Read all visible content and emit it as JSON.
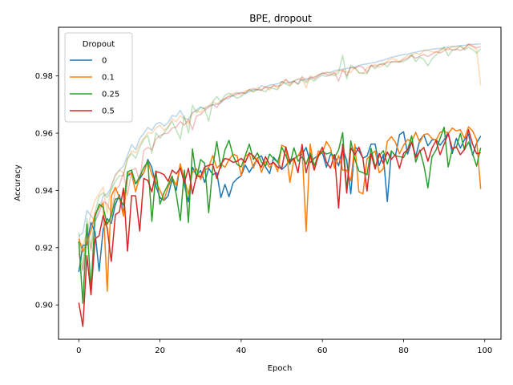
{
  "chart_data": {
    "type": "line",
    "title": "BPE, dropout",
    "xlabel": "Epoch",
    "ylabel": "Accuracy",
    "xlim": [
      -5,
      104
    ],
    "ylim": [
      0.888,
      0.997
    ],
    "xticks": [
      0,
      20,
      40,
      60,
      80,
      100
    ],
    "yticks": [
      0.9,
      0.92,
      0.94,
      0.96,
      0.98
    ],
    "ytick_labels": [
      "0.90",
      "0.92",
      "0.94",
      "0.96",
      "0.98"
    ],
    "legend": {
      "title": "Dropout",
      "position": "top-left"
    },
    "grid": false,
    "faded_alpha": 0.3,
    "series": [
      {
        "name": "0",
        "color": "#1f77b4",
        "values": [
          0.9115,
          0.9208,
          0.921,
          0.9288,
          0.9255,
          0.9118,
          0.9265,
          0.9301,
          0.9285,
          0.935,
          0.9385,
          0.9321,
          0.945,
          0.9462,
          0.9423,
          0.9441,
          0.9462,
          0.9508,
          0.948,
          0.9415,
          0.9375,
          0.9365,
          0.9381,
          0.9439,
          0.94,
          0.9493,
          0.942,
          0.936,
          0.9481,
          0.9452,
          0.947,
          0.9428,
          0.9478,
          0.9455,
          0.9462,
          0.9375,
          0.9421,
          0.9378,
          0.9426,
          0.9441,
          0.9451,
          0.9489,
          0.9463,
          0.9487,
          0.9512,
          0.9521,
          0.9482,
          0.9459,
          0.9516,
          0.9498,
          0.9473,
          0.9486,
          0.9508,
          0.9511,
          0.9521,
          0.9526,
          0.955,
          0.9497,
          0.9512,
          0.9523,
          0.9532,
          0.9481,
          0.9525,
          0.9522,
          0.9486,
          0.9548,
          0.9505,
          0.9388,
          0.9553,
          0.9538,
          0.9513,
          0.952,
          0.9562,
          0.9562,
          0.9487,
          0.9525,
          0.9361,
          0.9538,
          0.9521,
          0.9595,
          0.9605,
          0.9527,
          0.9571,
          0.9518,
          0.9576,
          0.9594,
          0.9556,
          0.9576,
          0.9578,
          0.9558,
          0.9577,
          0.9603,
          0.9529,
          0.9582,
          0.9548,
          0.9577,
          0.9598,
          0.9523,
          0.9565,
          0.959
        ]
      },
      {
        "name": "0.1",
        "color": "#ff7f0e",
        "values": [
          0.9231,
          0.9186,
          0.9216,
          0.9259,
          0.9318,
          0.9341,
          0.9355,
          0.9048,
          0.938,
          0.9411,
          0.9375,
          0.931,
          0.9461,
          0.9458,
          0.9395,
          0.945,
          0.9462,
          0.9502,
          0.9455,
          0.9428,
          0.9401,
          0.9367,
          0.9411,
          0.9445,
          0.9418,
          0.9492,
          0.9438,
          0.9387,
          0.9463,
          0.9476,
          0.9438,
          0.9469,
          0.9481,
          0.9522,
          0.9478,
          0.9492,
          0.9481,
          0.9508,
          0.9526,
          0.9521,
          0.9451,
          0.9519,
          0.9528,
          0.9478,
          0.9515,
          0.9463,
          0.9502,
          0.948,
          0.9498,
          0.9466,
          0.9558,
          0.9551,
          0.9428,
          0.9508,
          0.9521,
          0.9546,
          0.9257,
          0.9562,
          0.9476,
          0.9538,
          0.9531,
          0.9571,
          0.9548,
          0.9477,
          0.9522,
          0.9471,
          0.9471,
          0.9433,
          0.9562,
          0.9395,
          0.9388,
          0.951,
          0.9525,
          0.9538,
          0.9462,
          0.9476,
          0.9571,
          0.9588,
          0.9568,
          0.9528,
          0.9558,
          0.9578,
          0.957,
          0.9603,
          0.9568,
          0.9595,
          0.9598,
          0.9581,
          0.9575,
          0.9603,
          0.9608,
          0.9598,
          0.9618,
          0.9608,
          0.9612,
          0.9582,
          0.9622,
          0.9608,
          0.9578,
          0.9405
        ]
      },
      {
        "name": "0.25",
        "color": "#2ca02c",
        "values": [
          0.9222,
          0.9006,
          0.9282,
          0.9055,
          0.9308,
          0.9352,
          0.9341,
          0.9282,
          0.9311,
          0.937,
          0.9372,
          0.9348,
          0.9465,
          0.9471,
          0.9423,
          0.9448,
          0.948,
          0.9501,
          0.9292,
          0.9468,
          0.9352,
          0.9392,
          0.9421,
          0.945,
          0.9387,
          0.9295,
          0.9471,
          0.9288,
          0.9545,
          0.9442,
          0.9508,
          0.9495,
          0.9322,
          0.9482,
          0.9571,
          0.9478,
          0.9541,
          0.9575,
          0.9521,
          0.9491,
          0.9482,
          0.9521,
          0.9562,
          0.9508,
          0.9531,
          0.9499,
          0.9485,
          0.9527,
          0.9511,
          0.9498,
          0.9551,
          0.9521,
          0.9491,
          0.9549,
          0.9502,
          0.9518,
          0.9492,
          0.9532,
          0.9488,
          0.9518,
          0.9538,
          0.9527,
          0.9532,
          0.9515,
          0.9541,
          0.9602,
          0.9398,
          0.9573,
          0.9509,
          0.9468,
          0.9462,
          0.9455,
          0.9547,
          0.9482,
          0.9521,
          0.9539,
          0.9492,
          0.9538,
          0.9521,
          0.9518,
          0.9515,
          0.9542,
          0.9591,
          0.9499,
          0.9541,
          0.9488,
          0.9409,
          0.9518,
          0.9541,
          0.9582,
          0.9621,
          0.9482,
          0.9545,
          0.9551,
          0.9599,
          0.9542,
          0.9569,
          0.9529,
          0.9485,
          0.9549
        ]
      },
      {
        "name": "0.5",
        "color": "#d62728",
        "values": [
          0.9008,
          0.8925,
          0.9172,
          0.9035,
          0.9231,
          0.9242,
          0.9312,
          0.9268,
          0.9152,
          0.9315,
          0.9325,
          0.9408,
          0.9188,
          0.9382,
          0.9381,
          0.9258,
          0.9442,
          0.9435,
          0.9395,
          0.9466,
          0.9462,
          0.9455,
          0.9432,
          0.9471,
          0.9458,
          0.9478,
          0.9427,
          0.9478,
          0.9388,
          0.9452,
          0.9447,
          0.9482,
          0.9488,
          0.9491,
          0.9442,
          0.9491,
          0.9512,
          0.9508,
          0.9498,
          0.9502,
          0.9512,
          0.9498,
          0.9531,
          0.9521,
          0.9501,
          0.9481,
          0.9518,
          0.9491,
          0.9498,
          0.9481,
          0.9477,
          0.9552,
          0.9498,
          0.9512,
          0.9462,
          0.9561,
          0.9462,
          0.9522,
          0.9471,
          0.9521,
          0.9551,
          0.9498,
          0.9478,
          0.9525,
          0.9338,
          0.9562,
          0.9391,
          0.9549,
          0.9525,
          0.9551,
          0.9511,
          0.9398,
          0.9528,
          0.9475,
          0.9529,
          0.9494,
          0.9534,
          0.9509,
          0.9525,
          0.9477,
          0.953,
          0.9542,
          0.9568,
          0.9515,
          0.9536,
          0.955,
          0.9502,
          0.9548,
          0.9574,
          0.9525,
          0.9562,
          0.9598,
          0.9546,
          0.9552,
          0.9525,
          0.9543,
          0.9612,
          0.9562,
          0.9528,
          0.9532
        ]
      }
    ],
    "faded_series": [
      {
        "name": "0",
        "color": "#1f77b4",
        "values": [
          0.924,
          0.9252,
          0.933,
          0.9312,
          0.929,
          0.9335,
          0.938,
          0.9388,
          0.941,
          0.9455,
          0.9471,
          0.9485,
          0.9522,
          0.956,
          0.9543,
          0.9581,
          0.9599,
          0.962,
          0.961,
          0.9632,
          0.9638,
          0.9625,
          0.9637,
          0.9662,
          0.9658,
          0.968,
          0.9652,
          0.9648,
          0.9672,
          0.9681,
          0.9692,
          0.9685,
          0.9695,
          0.97,
          0.9701,
          0.9706,
          0.9718,
          0.9722,
          0.9734,
          0.974,
          0.9741,
          0.9738,
          0.9745,
          0.9752,
          0.9751,
          0.9766,
          0.976,
          0.9768,
          0.977,
          0.9772,
          0.978,
          0.9775,
          0.9778,
          0.9782,
          0.9788,
          0.9785,
          0.979,
          0.9792,
          0.9796,
          0.9802,
          0.9808,
          0.9811,
          0.9812,
          0.9818,
          0.9821,
          0.9823,
          0.9826,
          0.9829,
          0.9831,
          0.9836,
          0.984,
          0.9842,
          0.9845,
          0.9847,
          0.9852,
          0.9855,
          0.986,
          0.9865,
          0.9868,
          0.9872,
          0.9875,
          0.9876,
          0.988,
          0.9883,
          0.9886,
          0.9889,
          0.9891,
          0.9893,
          0.9895,
          0.9896,
          0.9899,
          0.9901,
          0.9903,
          0.9904,
          0.9906,
          0.9907,
          0.9909,
          0.991,
          0.9911,
          0.9912
        ]
      },
      {
        "name": "0.1",
        "color": "#ff7f0e",
        "values": [
          0.9218,
          0.921,
          0.9252,
          0.9321,
          0.9365,
          0.9388,
          0.9412,
          0.932,
          0.942,
          0.945,
          0.9471,
          0.9462,
          0.9511,
          0.9538,
          0.9532,
          0.9561,
          0.9582,
          0.9602,
          0.96,
          0.9618,
          0.9628,
          0.961,
          0.9622,
          0.965,
          0.964,
          0.9661,
          0.9648,
          0.9632,
          0.967,
          0.968,
          0.9672,
          0.969,
          0.9695,
          0.971,
          0.9702,
          0.9712,
          0.972,
          0.9731,
          0.974,
          0.9742,
          0.9732,
          0.9748,
          0.9752,
          0.9743,
          0.976,
          0.9752,
          0.9763,
          0.975,
          0.9768,
          0.9757,
          0.978,
          0.9787,
          0.9768,
          0.9782,
          0.979,
          0.9792,
          0.9758,
          0.98,
          0.9795,
          0.9805,
          0.981,
          0.9813,
          0.9811,
          0.9808,
          0.982,
          0.9817,
          0.9815,
          0.9812,
          0.983,
          0.981,
          0.9808,
          0.9828,
          0.9835,
          0.984,
          0.983,
          0.9838,
          0.9852,
          0.986,
          0.9858,
          0.9851,
          0.9862,
          0.987,
          0.9871,
          0.988,
          0.9875,
          0.9888,
          0.9889,
          0.9884,
          0.9882,
          0.9892,
          0.9895,
          0.9891,
          0.9902,
          0.99,
          0.9903,
          0.9896,
          0.9908,
          0.9902,
          0.9892,
          0.9768
        ]
      },
      {
        "name": "0.25",
        "color": "#2ca02c",
        "values": [
          0.9252,
          0.9125,
          0.9301,
          0.92,
          0.9325,
          0.938,
          0.9392,
          0.9375,
          0.9402,
          0.9432,
          0.9451,
          0.9451,
          0.951,
          0.953,
          0.9512,
          0.955,
          0.9578,
          0.9592,
          0.953,
          0.9601,
          0.9582,
          0.9601,
          0.9621,
          0.9642,
          0.9611,
          0.958,
          0.966,
          0.96,
          0.9698,
          0.9672,
          0.969,
          0.9685,
          0.9642,
          0.971,
          0.9728,
          0.9711,
          0.9732,
          0.974,
          0.9731,
          0.9722,
          0.9728,
          0.974,
          0.9752,
          0.9745,
          0.9752,
          0.975,
          0.9745,
          0.976,
          0.9755,
          0.9752,
          0.978,
          0.9772,
          0.9765,
          0.9782,
          0.977,
          0.9788,
          0.9776,
          0.979,
          0.9782,
          0.9795,
          0.9802,
          0.9798,
          0.9806,
          0.9801,
          0.9812,
          0.9872,
          0.979,
          0.9838,
          0.9828,
          0.9812,
          0.981,
          0.9808,
          0.9836,
          0.9825,
          0.9838,
          0.9845,
          0.9832,
          0.985,
          0.9848,
          0.9849,
          0.9851,
          0.9858,
          0.9876,
          0.985,
          0.9866,
          0.9858,
          0.9835,
          0.986,
          0.9872,
          0.9888,
          0.99,
          0.987,
          0.989,
          0.9892,
          0.9905,
          0.9891,
          0.99,
          0.9892,
          0.988,
          0.9895
        ]
      },
      {
        "name": "0.5",
        "color": "#d62728",
        "values": [
          0.918,
          0.912,
          0.926,
          0.919,
          0.9292,
          0.932,
          0.9362,
          0.9352,
          0.9322,
          0.94,
          0.9418,
          0.9462,
          0.9382,
          0.947,
          0.9478,
          0.9432,
          0.954,
          0.955,
          0.9542,
          0.958,
          0.9592,
          0.9598,
          0.96,
          0.9618,
          0.9621,
          0.9641,
          0.9628,
          0.9648,
          0.9612,
          0.966,
          0.9665,
          0.968,
          0.969,
          0.97,
          0.969,
          0.971,
          0.9722,
          0.9728,
          0.973,
          0.9736,
          0.9742,
          0.9741,
          0.9752,
          0.9756,
          0.9752,
          0.975,
          0.9762,
          0.9758,
          0.9766,
          0.9764,
          0.9768,
          0.9788,
          0.9775,
          0.9782,
          0.9772,
          0.9798,
          0.9782,
          0.9796,
          0.9789,
          0.98,
          0.981,
          0.9805,
          0.9802,
          0.9812,
          0.9782,
          0.9822,
          0.9801,
          0.983,
          0.9826,
          0.9835,
          0.983,
          0.9812,
          0.9838,
          0.9832,
          0.9841,
          0.984,
          0.9848,
          0.9848,
          0.9852,
          0.9848,
          0.9857,
          0.9862,
          0.987,
          0.9862,
          0.9869,
          0.9875,
          0.9868,
          0.9876,
          0.9885,
          0.988,
          0.9888,
          0.9898,
          0.989,
          0.9894,
          0.9889,
          0.9896,
          0.9912,
          0.9905,
          0.9898,
          0.9902
        ]
      }
    ]
  }
}
